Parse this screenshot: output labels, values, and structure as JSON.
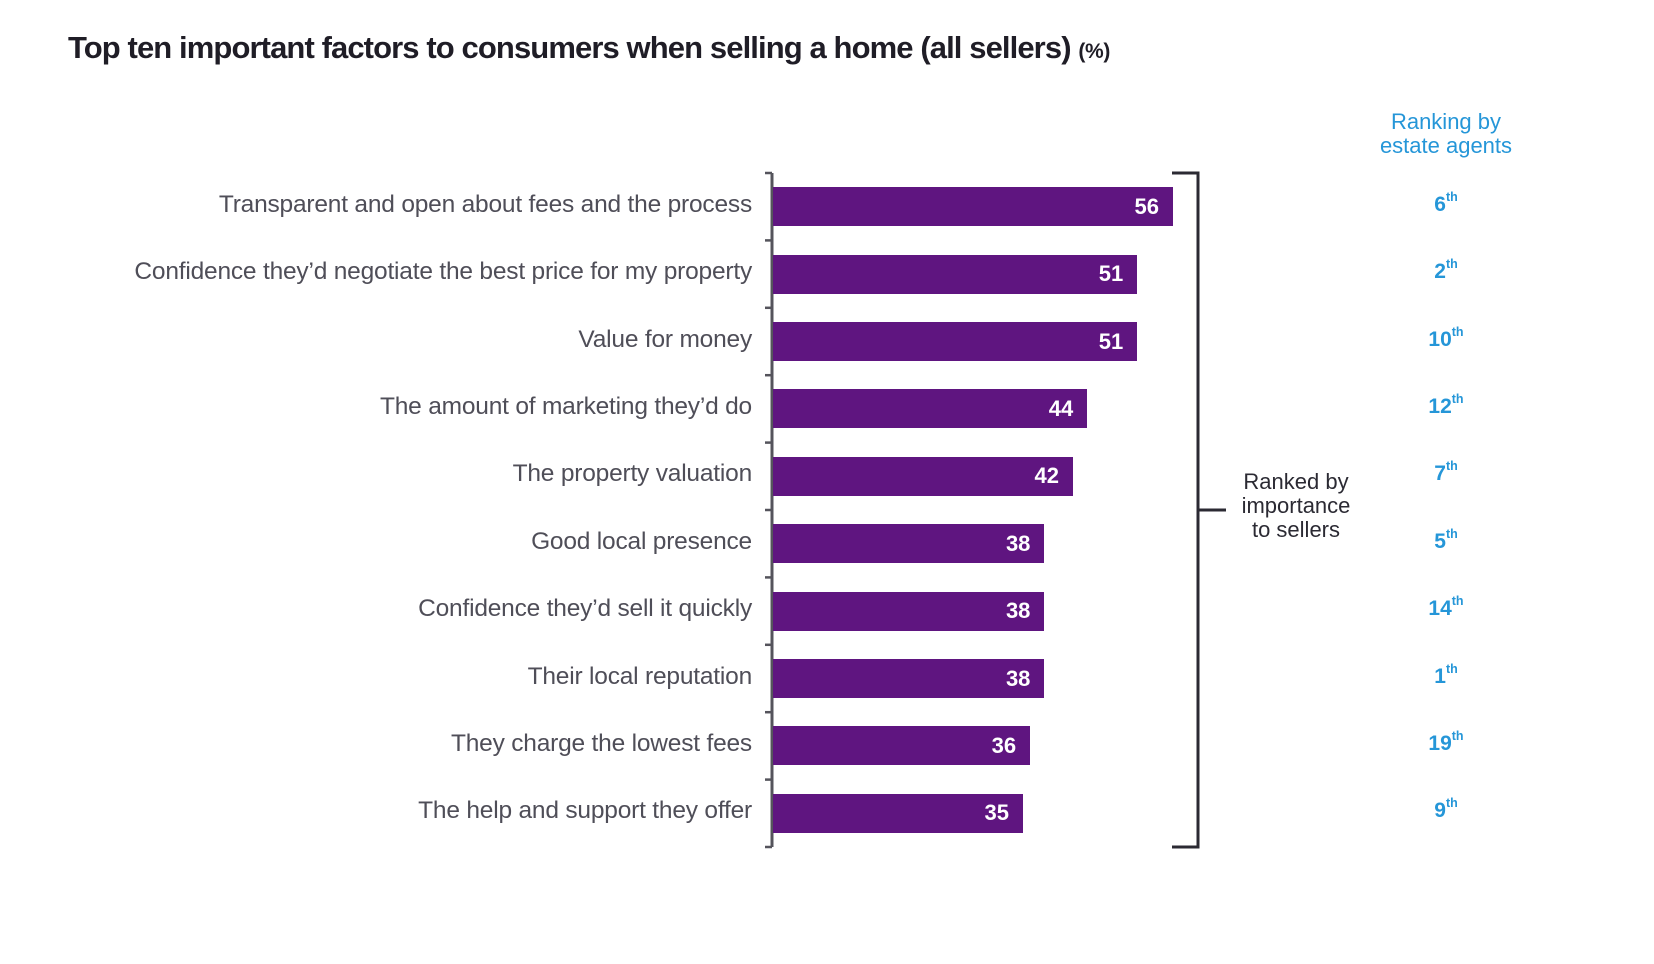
{
  "chart_data": {
    "type": "bar",
    "orientation": "horizontal",
    "title": "Top ten important factors to consumers when selling a home (all sellers)",
    "title_unit": "(%)",
    "categories": [
      "Transparent and open about fees and the process",
      "Confidence they’d negotiate the best price for my property",
      "Value for money",
      "The amount of marketing they’d do",
      "The property valuation",
      "Good local presence",
      "Confidence they’d sell it quickly",
      "Their local reputation",
      "They charge the lowest fees",
      "The help and support they offer"
    ],
    "values": [
      56,
      51,
      51,
      44,
      42,
      38,
      38,
      38,
      36,
      35
    ],
    "value_labels": [
      "56",
      "51",
      "51",
      "44",
      "42",
      "38",
      "38",
      "38",
      "36",
      "35"
    ],
    "xlim": [
      0,
      56
    ],
    "grid": false,
    "bar_color": "#5f1580",
    "annotations": {
      "bracket_label": [
        "Ranked by",
        "importance",
        "to sellers"
      ]
    },
    "secondary_column": {
      "header": [
        "Ranking by",
        "estate agents"
      ],
      "color": "#2596d8",
      "values": [
        {
          "num": "6",
          "suffix": "th"
        },
        {
          "num": "2",
          "suffix": "th"
        },
        {
          "num": "10",
          "suffix": "th"
        },
        {
          "num": "12",
          "suffix": "th"
        },
        {
          "num": "7",
          "suffix": "th"
        },
        {
          "num": "5",
          "suffix": "th"
        },
        {
          "num": "14",
          "suffix": "th"
        },
        {
          "num": "1",
          "suffix": "th"
        },
        {
          "num": "19",
          "suffix": "th"
        },
        {
          "num": "9",
          "suffix": "th"
        }
      ]
    }
  }
}
